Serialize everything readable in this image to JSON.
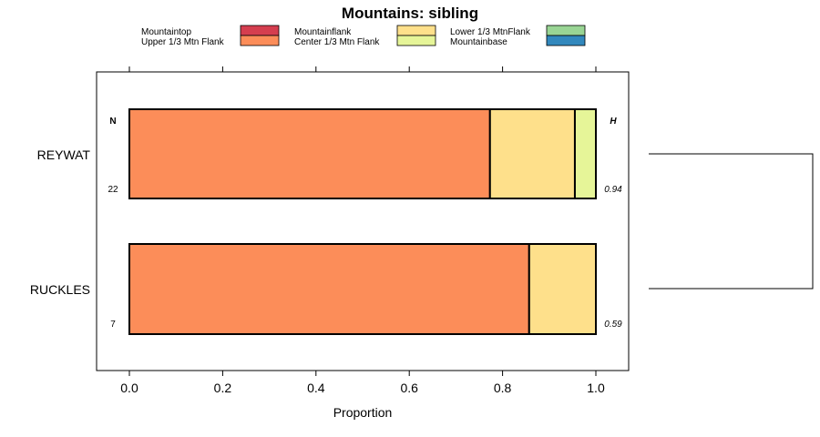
{
  "chart_data": {
    "type": "bar",
    "orientation": "horizontal-stacked",
    "title": "Mountains: sibling",
    "xlabel": "Proportion",
    "ylabel": "",
    "xlim": [
      -0.07,
      1.07
    ],
    "xticks": [
      0.0,
      0.2,
      0.4,
      0.6,
      0.8,
      1.0
    ],
    "xtick_labels": [
      "0.0",
      "0.2",
      "0.4",
      "0.6",
      "0.8",
      "1.0"
    ],
    "grid": false,
    "legend_position": "top",
    "categories": [
      {
        "name": "Mountaintop",
        "color": "#D53E4F"
      },
      {
        "name": "Upper 1/3 Mtn Flank",
        "color": "#FC8D59"
      },
      {
        "name": "Mountainflank",
        "color": "#FEE08B"
      },
      {
        "name": "Center 1/3 Mtn Flank",
        "color": "#E6F598"
      },
      {
        "name": "Lower 1/3 MtnFlank",
        "color": "#99D594"
      },
      {
        "name": "Mountainbase",
        "color": "#3288BD"
      }
    ],
    "column_headers": {
      "n": "N",
      "h": "H"
    },
    "rows": [
      {
        "label": "REYWAT",
        "n": "22",
        "h": "0.94",
        "values": [
          0.0,
          0.773,
          0.182,
          0.045,
          0.0,
          0.0
        ]
      },
      {
        "label": "RUCKLES",
        "n": "7",
        "h": "0.59",
        "values": [
          0.0,
          0.857,
          0.143,
          0.0,
          0.0,
          0.0
        ]
      }
    ],
    "dendrogram": true
  }
}
